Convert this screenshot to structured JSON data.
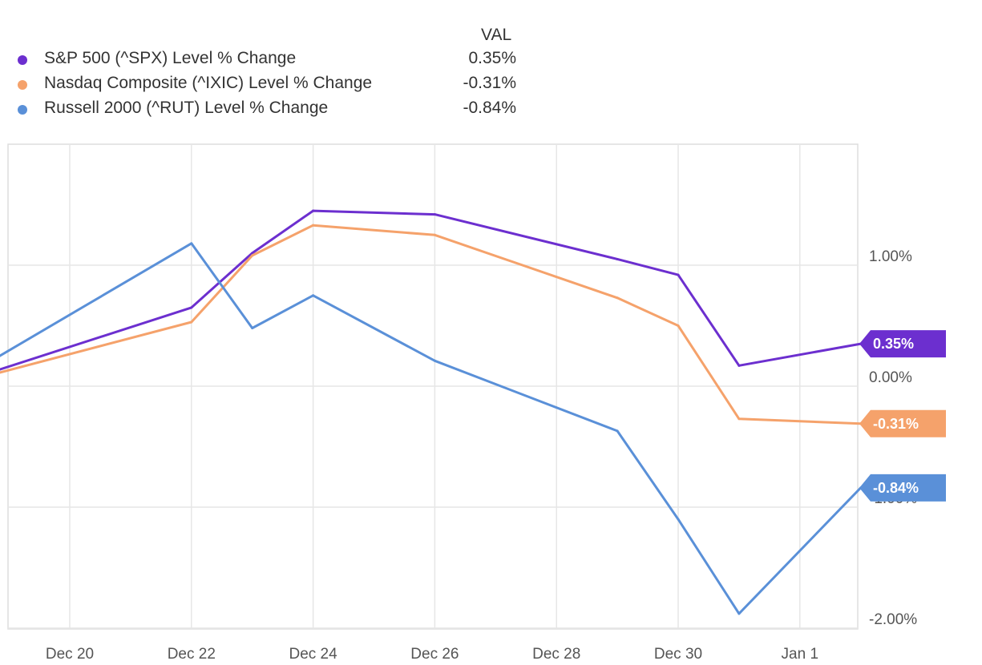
{
  "legend": {
    "header": "VAL",
    "items": [
      {
        "label": "S&P 500 (^SPX) Level % Change",
        "value": "0.35%",
        "color": "#6c2fcf"
      },
      {
        "label": "Nasdaq Composite (^IXIC) Level % Change",
        "value": "-0.31%",
        "color": "#f5a26b"
      },
      {
        "label": "Russell 2000 (^RUT) Level % Change",
        "value": "-0.84%",
        "color": "#5a90d8"
      }
    ]
  },
  "chart_data": {
    "type": "line",
    "x_ticks": [
      "Dec 20",
      "Dec 22",
      "Dec 24",
      "Dec 26",
      "Dec 28",
      "Dec 30",
      "Jan 1"
    ],
    "y_ticks": [
      "1.00%",
      "0.00%",
      "-1.00%",
      "-2.00%"
    ],
    "ylim": [
      -2.0,
      2.0
    ],
    "grid": true,
    "legend_position": "top-left",
    "series": [
      {
        "name": "S&P 500 (^SPX) Level % Change",
        "color": "#6c2fcf",
        "end_label": "0.35%",
        "x": [
          "Dec 18",
          "Dec 22",
          "Dec 23",
          "Dec 24",
          "Dec 26",
          "Dec 29",
          "Dec 30",
          "Dec 31",
          "Jan 2"
        ],
        "values": [
          0.0,
          0.65,
          1.1,
          1.45,
          1.42,
          1.05,
          0.92,
          0.17,
          0.35
        ]
      },
      {
        "name": "Nasdaq Composite (^IXIC) Level % Change",
        "color": "#f5a26b",
        "end_label": "-0.31%",
        "x": [
          "Dec 18",
          "Dec 22",
          "Dec 23",
          "Dec 24",
          "Dec 26",
          "Dec 29",
          "Dec 30",
          "Dec 31",
          "Jan 2"
        ],
        "values": [
          0.0,
          0.53,
          1.08,
          1.33,
          1.25,
          0.73,
          0.5,
          -0.27,
          -0.31
        ]
      },
      {
        "name": "Russell 2000 (^RUT) Level % Change",
        "color": "#5a90d8",
        "end_label": "-0.84%",
        "x": [
          "Dec 18",
          "Dec 22",
          "Dec 23",
          "Dec 24",
          "Dec 26",
          "Dec 29",
          "Dec 30",
          "Dec 31",
          "Jan 2"
        ],
        "values": [
          0.0,
          1.18,
          0.48,
          0.75,
          0.21,
          -0.37,
          -1.1,
          -1.88,
          -0.84
        ]
      }
    ]
  }
}
